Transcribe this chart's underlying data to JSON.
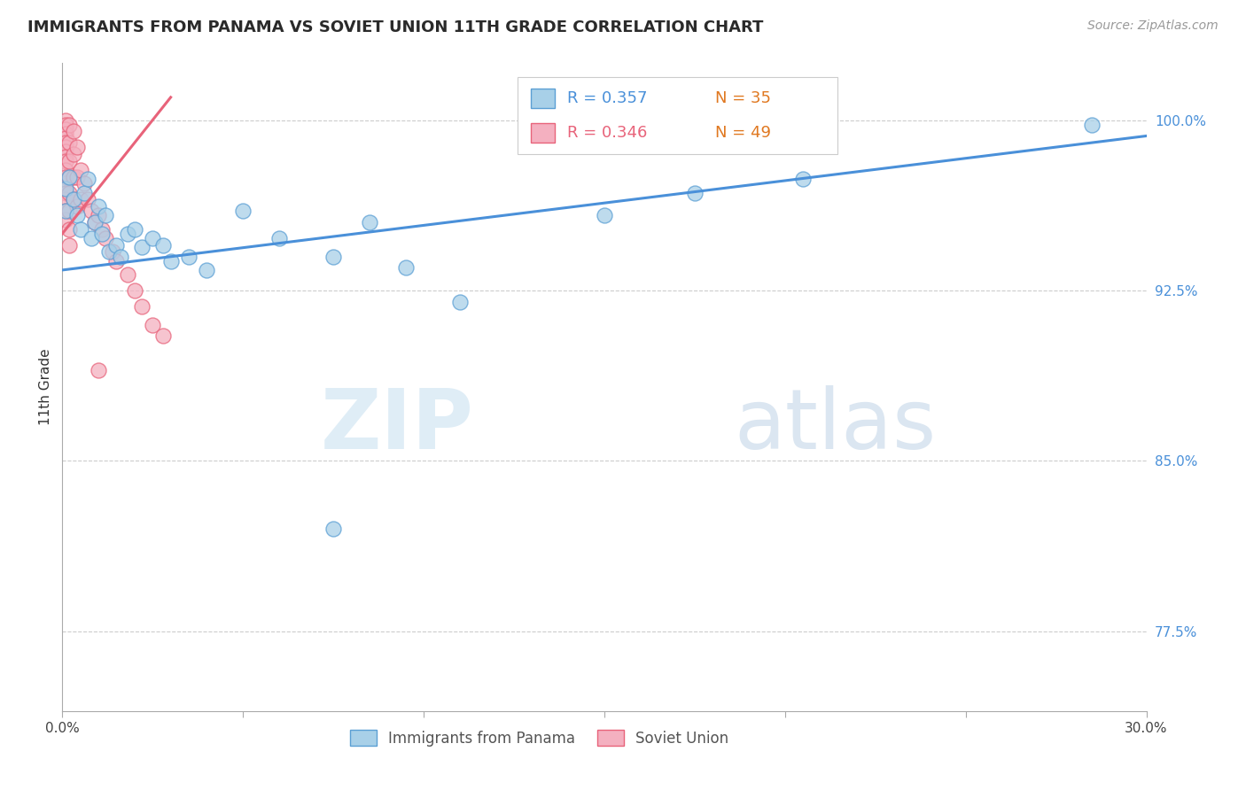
{
  "title": "IMMIGRANTS FROM PANAMA VS SOVIET UNION 11TH GRADE CORRELATION CHART",
  "source": "Source: ZipAtlas.com",
  "ylabel": "11th Grade",
  "x_min": 0.0,
  "x_max": 0.3,
  "y_min": 0.74,
  "y_max": 1.025,
  "x_ticks": [
    0.0,
    0.05,
    0.1,
    0.15,
    0.2,
    0.25,
    0.3
  ],
  "y_ticks": [
    0.775,
    0.85,
    0.925,
    1.0
  ],
  "y_tick_labels": [
    "77.5%",
    "85.0%",
    "92.5%",
    "100.0%"
  ],
  "legend_blue_r": "R = 0.357",
  "legend_blue_n": "N = 35",
  "legend_pink_r": "R = 0.346",
  "legend_pink_n": "N = 49",
  "legend_label_blue": "Immigrants from Panama",
  "legend_label_pink": "Soviet Union",
  "blue_color": "#a8d0e8",
  "pink_color": "#f4b0c0",
  "blue_edge_color": "#5b9fd4",
  "pink_edge_color": "#e8637a",
  "blue_line_color": "#4a90d9",
  "pink_line_color": "#e8637a",
  "n_color": "#e07820",
  "blue_scatter_x": [
    0.001,
    0.001,
    0.002,
    0.003,
    0.004,
    0.005,
    0.006,
    0.007,
    0.008,
    0.009,
    0.01,
    0.011,
    0.012,
    0.013,
    0.015,
    0.016,
    0.018,
    0.02,
    0.022,
    0.025,
    0.028,
    0.03,
    0.035,
    0.04,
    0.05,
    0.06,
    0.075,
    0.085,
    0.095,
    0.11,
    0.15,
    0.175,
    0.205,
    0.075,
    0.285
  ],
  "blue_scatter_y": [
    0.97,
    0.96,
    0.975,
    0.965,
    0.958,
    0.952,
    0.968,
    0.974,
    0.948,
    0.955,
    0.962,
    0.95,
    0.958,
    0.942,
    0.945,
    0.94,
    0.95,
    0.952,
    0.944,
    0.948,
    0.945,
    0.938,
    0.94,
    0.934,
    0.96,
    0.948,
    0.94,
    0.955,
    0.935,
    0.92,
    0.958,
    0.968,
    0.974,
    0.82,
    0.998
  ],
  "pink_scatter_x": [
    0.001,
    0.001,
    0.001,
    0.001,
    0.001,
    0.001,
    0.001,
    0.001,
    0.001,
    0.001,
    0.001,
    0.001,
    0.001,
    0.001,
    0.001,
    0.001,
    0.001,
    0.002,
    0.002,
    0.002,
    0.002,
    0.002,
    0.002,
    0.002,
    0.002,
    0.003,
    0.003,
    0.003,
    0.003,
    0.004,
    0.004,
    0.004,
    0.005,
    0.005,
    0.006,
    0.007,
    0.008,
    0.009,
    0.01,
    0.011,
    0.012,
    0.014,
    0.015,
    0.018,
    0.02,
    0.022,
    0.025,
    0.028,
    0.01
  ],
  "pink_scatter_y": [
    1.0,
    0.998,
    0.996,
    0.994,
    0.992,
    0.99,
    0.988,
    0.986,
    0.984,
    0.982,
    0.978,
    0.975,
    0.972,
    0.968,
    0.965,
    0.96,
    0.956,
    0.998,
    0.99,
    0.982,
    0.975,
    0.968,
    0.96,
    0.952,
    0.945,
    0.995,
    0.985,
    0.975,
    0.965,
    0.988,
    0.975,
    0.962,
    0.978,
    0.965,
    0.972,
    0.965,
    0.96,
    0.955,
    0.958,
    0.952,
    0.948,
    0.942,
    0.938,
    0.932,
    0.925,
    0.918,
    0.91,
    0.905,
    0.89
  ],
  "blue_trend_x": [
    0.0,
    0.3
  ],
  "blue_trend_y": [
    0.934,
    0.993
  ],
  "pink_trend_x": [
    0.0,
    0.03
  ],
  "pink_trend_y": [
    0.95,
    1.01
  ],
  "watermark_zip": "ZIP",
  "watermark_atlas": "atlas",
  "background_color": "#ffffff",
  "grid_color": "#cccccc",
  "title_fontsize": 13,
  "source_fontsize": 10,
  "tick_fontsize": 11,
  "ylabel_fontsize": 11
}
